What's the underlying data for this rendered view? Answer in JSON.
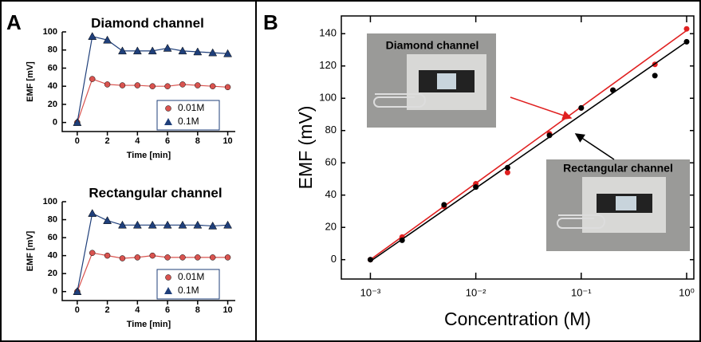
{
  "panel_labels": [
    "A",
    "B"
  ],
  "chart_data": [
    {
      "type": "line",
      "title": "Diamond channel",
      "x_label": "Time [min]",
      "y_label": "EMF [mV]",
      "x": [
        0,
        1,
        2,
        3,
        4,
        5,
        6,
        7,
        8,
        9,
        10
      ],
      "xlim": [
        -1,
        10.5
      ],
      "xticks": [
        0,
        2,
        4,
        6,
        8,
        10
      ],
      "ylim": [
        -10,
        100
      ],
      "yticks": [
        0,
        20,
        40,
        60,
        80,
        100
      ],
      "series": [
        {
          "name": "0.01M",
          "color": "#d9534f",
          "marker": "circle",
          "values": [
            0,
            48,
            42,
            41,
            41,
            40,
            40,
            42,
            41,
            40,
            39
          ]
        },
        {
          "name": "0.1M",
          "color": "#1f3f7a",
          "marker": "triangle",
          "values": [
            0,
            95,
            91,
            79,
            79,
            79,
            82,
            79,
            78,
            77,
            76
          ]
        }
      ]
    },
    {
      "type": "line",
      "title": "Rectangular channel",
      "x_label": "Time [min]",
      "y_label": "EMF [mV]",
      "x": [
        0,
        1,
        2,
        3,
        4,
        5,
        6,
        7,
        8,
        9,
        10
      ],
      "xlim": [
        -1,
        10.5
      ],
      "xticks": [
        0,
        2,
        4,
        6,
        8,
        10
      ],
      "ylim": [
        -10,
        100
      ],
      "yticks": [
        0,
        20,
        40,
        60,
        80,
        100
      ],
      "series": [
        {
          "name": "0.01M",
          "color": "#d9534f",
          "marker": "circle",
          "values": [
            0,
            43,
            40,
            37,
            38,
            40,
            38,
            38,
            38,
            38,
            38
          ]
        },
        {
          "name": "0.1M",
          "color": "#1f3f7a",
          "marker": "triangle",
          "values": [
            0,
            87,
            79,
            74,
            74,
            74,
            74,
            74,
            74,
            73,
            74
          ]
        }
      ]
    },
    {
      "type": "scatter",
      "x_label": "Concentration (M)",
      "y_label": "EMF (mV)",
      "log_x": true,
      "x": [
        0.001,
        0.002,
        0.005,
        0.01,
        0.02,
        0.05,
        0.1,
        0.2,
        0.5,
        1
      ],
      "xlim": [
        0.00053,
        1.17
      ],
      "xticks": [
        {
          "value": 0.001,
          "label": "10⁻³"
        },
        {
          "value": 0.01,
          "label": "10⁻²"
        },
        {
          "value": 0.1,
          "label": "10⁻¹"
        },
        {
          "value": 1,
          "label": "10⁰"
        }
      ],
      "ylim": [
        -12,
        151
      ],
      "yticks": [
        0,
        20,
        40,
        60,
        80,
        100,
        120,
        140
      ],
      "series": [
        {
          "name": "Diamond channel",
          "color": "#e02020",
          "values": [
            0,
            14,
            33,
            47,
            54,
            78,
            94,
            105,
            121,
            143
          ],
          "fit": {
            "x": [
              0.001,
              1
            ],
            "values": [
              0,
              142
            ]
          }
        },
        {
          "name": "Rectangular channel",
          "color": "#000000",
          "values": [
            0,
            12,
            34,
            45,
            57,
            77,
            94,
            105,
            114,
            135
          ],
          "fit": {
            "x": [
              0.001,
              1
            ],
            "values": [
              -1,
              135
            ]
          }
        }
      ]
    }
  ]
}
